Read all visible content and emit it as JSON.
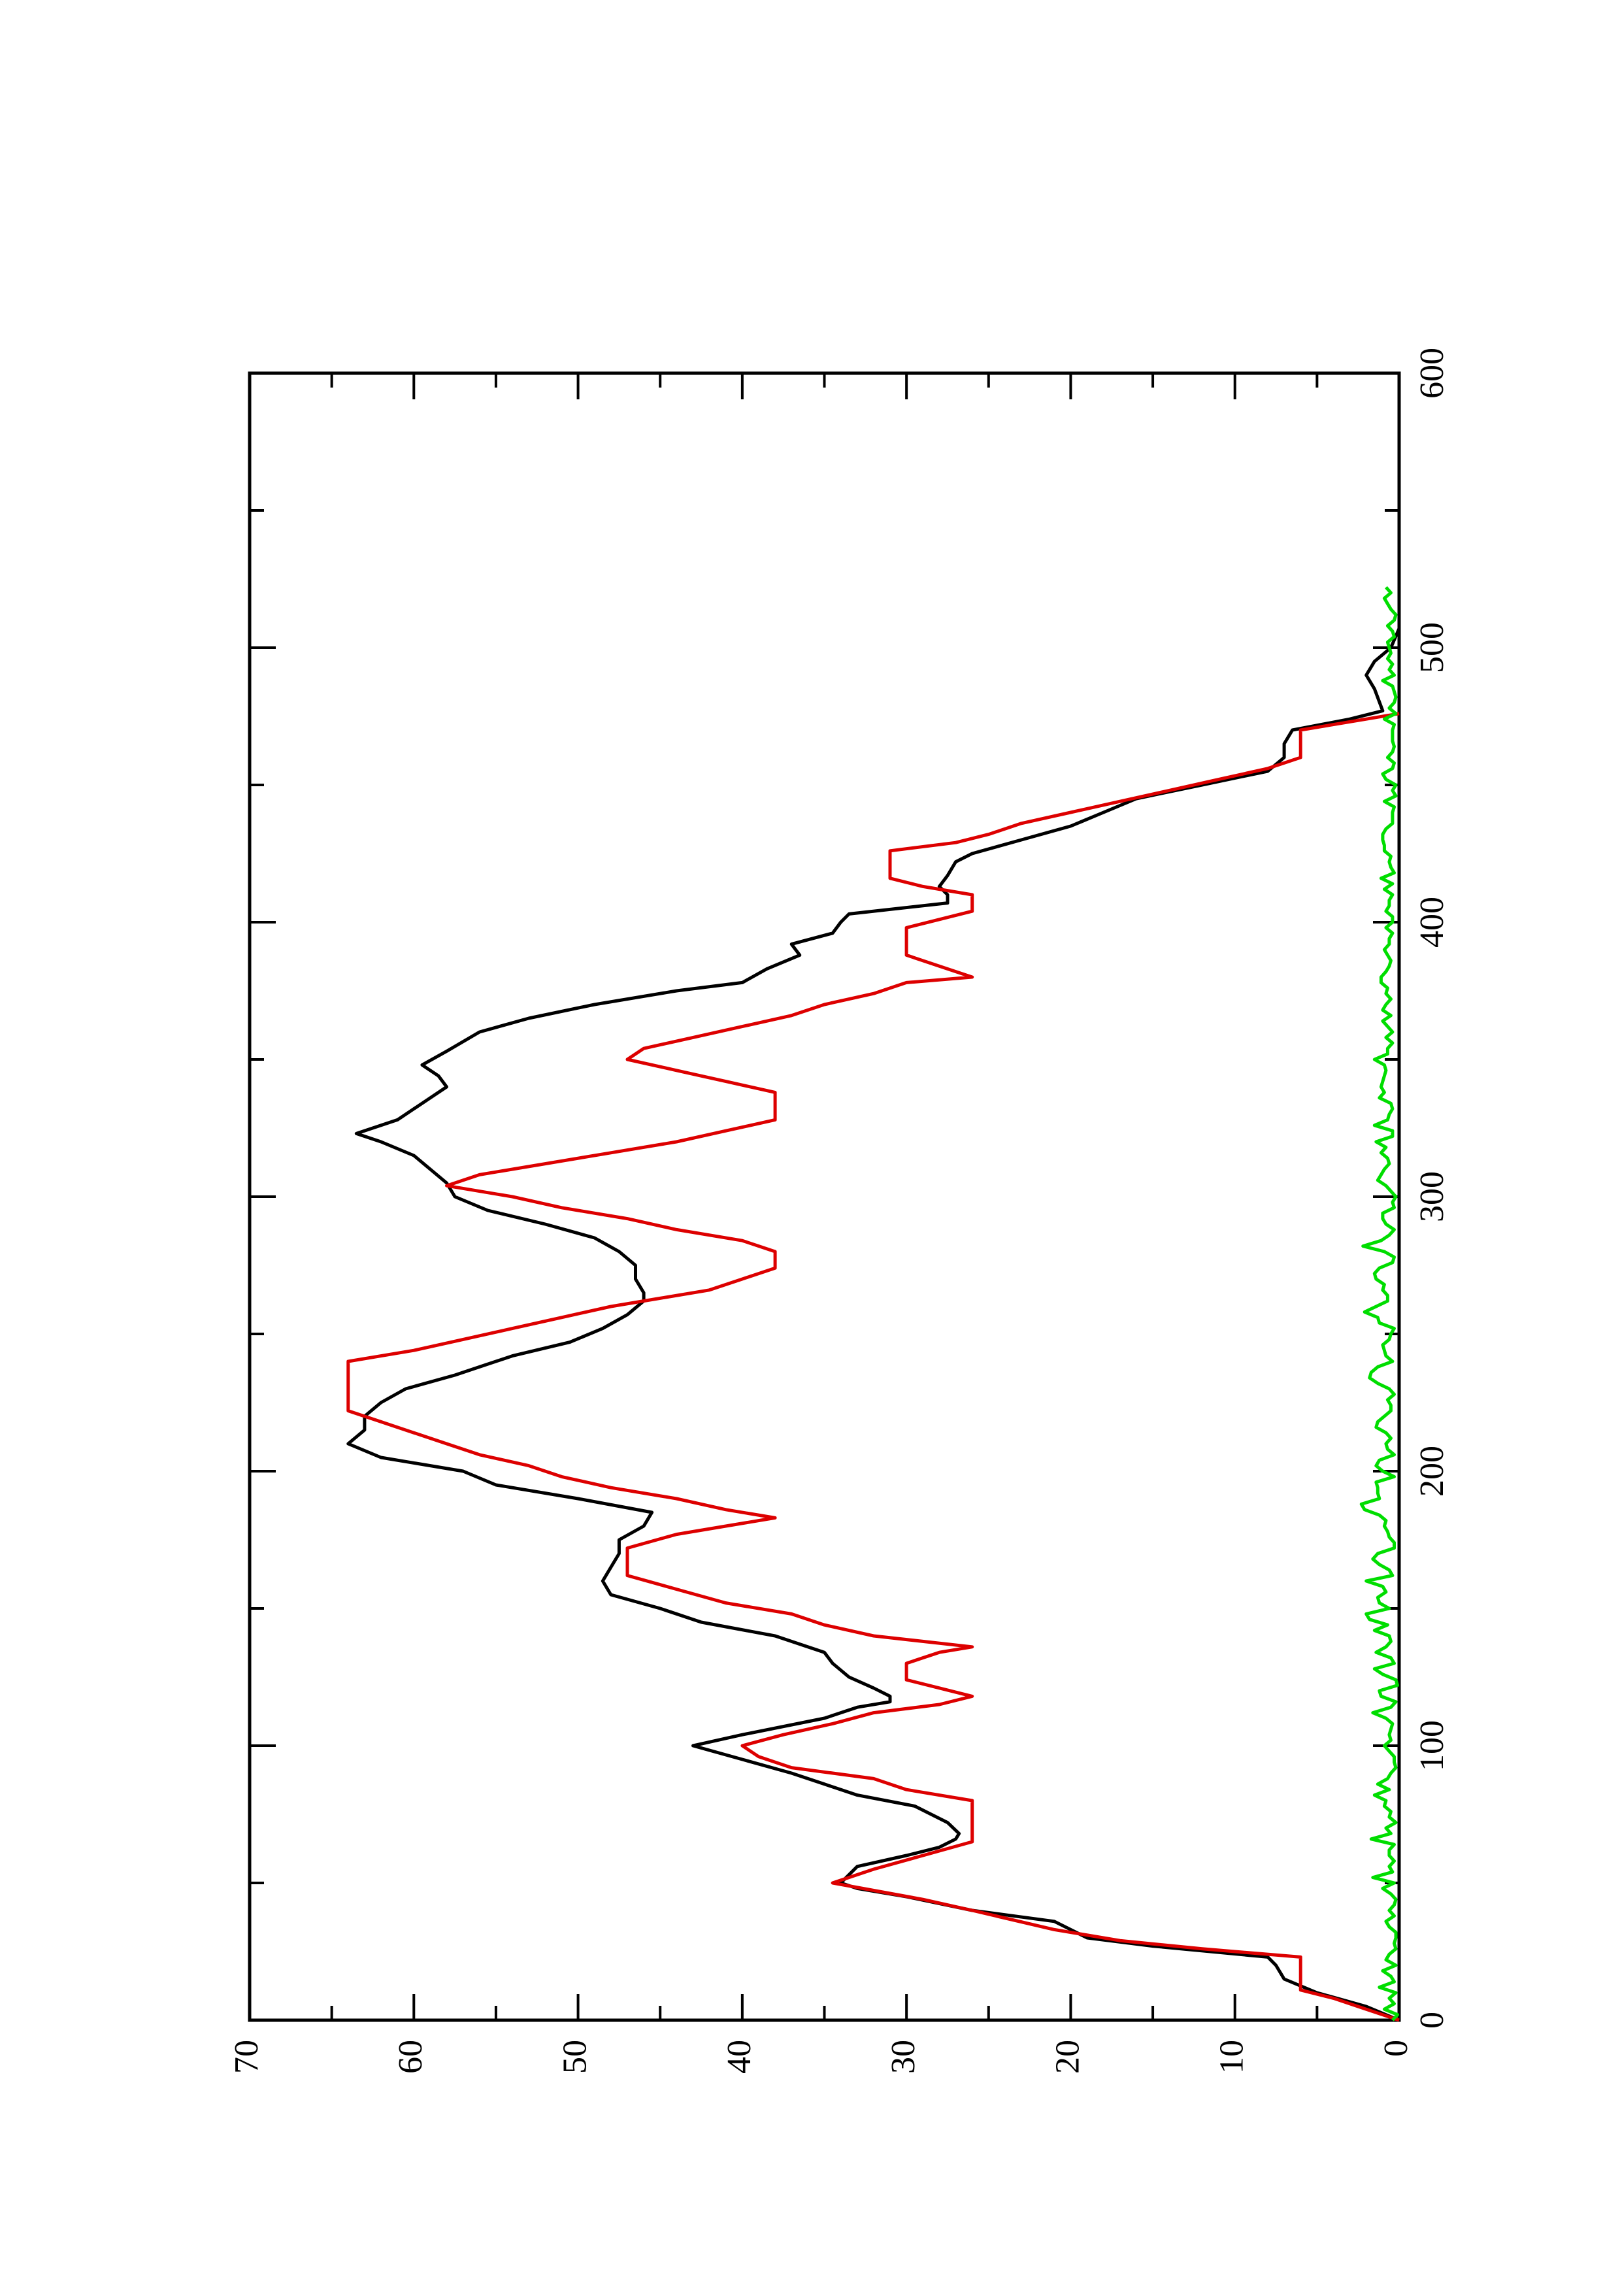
{
  "chart_data": {
    "type": "line",
    "orientation": "rotated-90-ccw",
    "title": "",
    "xlabel": "",
    "ylabel": "",
    "xlim": [
      0,
      600
    ],
    "ylim": [
      0,
      70
    ],
    "x_ticks": [
      "0",
      "100",
      "200",
      "300",
      "400",
      "500",
      "600"
    ],
    "y_ticks": [
      "0",
      "10",
      "20",
      "30",
      "40",
      "50",
      "60",
      "70"
    ],
    "grid": false,
    "legend": "none",
    "series": [
      {
        "color": "#000000",
        "style": "smoothed",
        "points": [
          [
            0,
            0
          ],
          [
            5,
            2
          ],
          [
            10,
            5
          ],
          [
            15,
            7
          ],
          [
            20,
            7.5
          ],
          [
            23,
            8
          ],
          [
            27,
            15
          ],
          [
            30,
            19
          ],
          [
            36,
            21
          ],
          [
            40,
            26
          ],
          [
            45,
            30
          ],
          [
            48,
            33
          ],
          [
            50,
            34
          ],
          [
            56,
            33
          ],
          [
            60,
            30
          ],
          [
            63,
            28
          ],
          [
            66,
            27
          ],
          [
            68,
            26.8
          ],
          [
            72,
            27.5
          ],
          [
            78,
            29.5
          ],
          [
            82,
            33
          ],
          [
            86,
            35
          ],
          [
            90,
            37
          ],
          [
            95,
            40
          ],
          [
            100,
            43
          ],
          [
            104,
            40
          ],
          [
            110,
            35
          ],
          [
            114,
            33
          ],
          [
            116,
            31
          ],
          [
            118,
            31
          ],
          [
            121,
            32
          ],
          [
            125,
            33.5
          ],
          [
            130,
            34.5
          ],
          [
            134,
            35
          ],
          [
            140,
            38
          ],
          [
            145,
            42.5
          ],
          [
            150,
            45
          ],
          [
            155,
            48
          ],
          [
            160,
            48.5
          ],
          [
            165,
            48
          ],
          [
            170,
            47.5
          ],
          [
            175,
            47.5
          ],
          [
            180,
            46
          ],
          [
            185,
            45.5
          ],
          [
            190,
            50
          ],
          [
            195,
            55
          ],
          [
            200,
            57
          ],
          [
            205,
            62
          ],
          [
            210,
            64
          ],
          [
            215,
            63
          ],
          [
            220,
            63
          ],
          [
            225,
            62
          ],
          [
            230,
            60.5
          ],
          [
            235,
            57.5
          ],
          [
            238,
            56
          ],
          [
            242,
            54
          ],
          [
            247,
            50.5
          ],
          [
            252,
            48.5
          ],
          [
            257,
            47
          ],
          [
            262,
            46
          ],
          [
            265,
            46
          ],
          [
            270,
            46.5
          ],
          [
            275,
            46.5
          ],
          [
            280,
            47.5
          ],
          [
            285,
            49
          ],
          [
            290,
            52
          ],
          [
            295,
            55.5
          ],
          [
            300,
            57.5
          ],
          [
            305,
            58
          ],
          [
            310,
            59
          ],
          [
            315,
            60
          ],
          [
            320,
            62
          ],
          [
            323,
            63.5
          ],
          [
            328,
            61
          ],
          [
            332,
            60
          ],
          [
            336,
            59
          ],
          [
            340,
            58
          ],
          [
            344,
            58.5
          ],
          [
            348,
            59.5
          ],
          [
            353,
            58
          ],
          [
            360,
            56
          ],
          [
            365,
            53
          ],
          [
            370,
            49
          ],
          [
            375,
            44
          ],
          [
            378,
            40
          ],
          [
            383,
            38.5
          ],
          [
            388,
            36.5
          ],
          [
            392,
            37
          ],
          [
            396,
            34.5
          ],
          [
            400,
            34
          ],
          [
            403,
            33.5
          ],
          [
            407,
            27.5
          ],
          [
            410,
            27.5
          ],
          [
            413,
            28
          ],
          [
            417,
            27.5
          ],
          [
            422,
            27
          ],
          [
            425,
            26
          ],
          [
            430,
            23
          ],
          [
            435,
            20
          ],
          [
            440,
            18
          ],
          [
            445,
            16
          ],
          [
            450,
            12
          ],
          [
            455,
            8
          ],
          [
            460,
            7
          ],
          [
            465,
            7
          ],
          [
            470,
            6.5
          ],
          [
            474,
            3
          ],
          [
            477,
            1
          ],
          [
            485,
            1.5
          ],
          [
            490,
            2
          ],
          [
            495,
            1.5
          ],
          [
            500,
            0.5
          ],
          [
            507,
            0
          ]
        ]
      },
      {
        "color": "#dd0000",
        "style": "step-trapezoid",
        "points": [
          [
            0,
            0
          ],
          [
            4,
            2
          ],
          [
            8,
            4
          ],
          [
            11,
            6
          ],
          [
            20,
            6
          ],
          [
            23,
            6
          ],
          [
            26,
            12
          ],
          [
            29,
            17
          ],
          [
            33,
            21
          ],
          [
            40,
            26
          ],
          [
            44,
            29
          ],
          [
            50,
            34.5
          ],
          [
            55,
            32
          ],
          [
            60,
            29
          ],
          [
            65,
            26
          ],
          [
            80,
            26
          ],
          [
            84,
            30
          ],
          [
            88,
            32
          ],
          [
            92,
            37
          ],
          [
            96,
            39
          ],
          [
            100,
            40
          ],
          [
            104,
            37.5
          ],
          [
            108,
            34.5
          ],
          [
            112,
            32
          ],
          [
            115,
            28
          ],
          [
            118,
            26
          ],
          [
            121,
            28
          ],
          [
            124,
            30
          ],
          [
            130,
            30
          ],
          [
            134,
            28
          ],
          [
            136,
            26
          ],
          [
            140,
            32
          ],
          [
            144,
            35
          ],
          [
            148,
            37
          ],
          [
            152,
            41
          ],
          [
            157,
            44
          ],
          [
            162,
            47
          ],
          [
            172,
            47
          ],
          [
            177,
            44
          ],
          [
            180,
            41
          ],
          [
            183,
            38
          ],
          [
            186,
            41
          ],
          [
            190,
            44
          ],
          [
            194,
            48
          ],
          [
            198,
            51
          ],
          [
            202,
            53
          ],
          [
            206,
            56
          ],
          [
            210,
            58
          ],
          [
            214,
            60
          ],
          [
            218,
            62
          ],
          [
            222,
            64
          ],
          [
            240,
            64
          ],
          [
            244,
            60
          ],
          [
            248,
            57
          ],
          [
            252,
            54
          ],
          [
            256,
            51
          ],
          [
            260,
            48
          ],
          [
            263,
            45
          ],
          [
            266,
            42
          ],
          [
            270,
            40
          ],
          [
            274,
            38
          ],
          [
            280,
            38
          ],
          [
            284,
            40
          ],
          [
            288,
            44
          ],
          [
            292,
            47
          ],
          [
            296,
            51
          ],
          [
            300,
            54
          ],
          [
            304,
            58
          ],
          [
            308,
            56
          ],
          [
            312,
            52
          ],
          [
            316,
            48
          ],
          [
            320,
            44
          ],
          [
            324,
            41
          ],
          [
            328,
            38
          ],
          [
            338,
            38
          ],
          [
            342,
            41
          ],
          [
            346,
            44
          ],
          [
            350,
            47
          ],
          [
            354,
            46
          ],
          [
            358,
            43
          ],
          [
            362,
            40
          ],
          [
            366,
            37
          ],
          [
            370,
            35
          ],
          [
            374,
            32
          ],
          [
            378,
            30
          ],
          [
            380,
            26
          ],
          [
            384,
            28
          ],
          [
            388,
            30
          ],
          [
            398,
            30
          ],
          [
            401,
            28
          ],
          [
            404,
            26
          ],
          [
            410,
            26
          ],
          [
            413,
            29
          ],
          [
            416,
            31
          ],
          [
            426,
            31
          ],
          [
            429,
            27
          ],
          [
            432,
            25
          ],
          [
            436,
            23
          ],
          [
            440,
            20
          ],
          [
            444,
            17
          ],
          [
            448,
            14
          ],
          [
            452,
            11
          ],
          [
            456,
            8
          ],
          [
            460,
            6
          ],
          [
            470,
            6
          ],
          [
            476,
            0
          ]
        ]
      },
      {
        "color": "#00dd00",
        "style": "noisy",
        "x_start": 0,
        "x_step": 2,
        "values": [
          0.4,
          0.1,
          0.9,
          0.3,
          0.6,
          0.2,
          1.2,
          0.3,
          0.5,
          1.0,
          0.2,
          0.8,
          0.6,
          0.2,
          0.3,
          0.2,
          0.2,
          0.6,
          0.8,
          0.3,
          0.6,
          0.3,
          0.2,
          0.5,
          1.0,
          0.3,
          1.6,
          0.4,
          0.6,
          0.3,
          0.6,
          0.6,
          0.3,
          1.7,
          0.5,
          0.8,
          0.2,
          0.6,
          0.5,
          0.9,
          0.8,
          1.5,
          0.6,
          1.3,
          0.7,
          0.5,
          0.2,
          0.3,
          0.3,
          0.6,
          0.9,
          0.5,
          0.6,
          0.5,
          0.4,
          0.8,
          1.6,
          0.5,
          0.2,
          1.1,
          1.2,
          0.1,
          0.2,
          1.0,
          1.5,
          0.3,
          0.5,
          1.4,
          0.8,
          0.5,
          0.6,
          1.5,
          0.7,
          1.8,
          2.0,
          0.6,
          1.2,
          1.3,
          0.8,
          1.0,
          2.0,
          0.4,
          0.6,
          1.2,
          1.6,
          1.3,
          0.3,
          0.3,
          0.6,
          0.7,
          0.9,
          0.8,
          1.2,
          2.1,
          2.3,
          1.2,
          1.3,
          1.3,
          1.4,
          0.3,
          1.0,
          1.4,
          1.2,
          0.3,
          0.7,
          0.8,
          0.5,
          0.8,
          1.4,
          1.3,
          0.9,
          0.5,
          0.5,
          0.7,
          0.3,
          0.6,
          1.3,
          1.8,
          1.7,
          1.3,
          0.4,
          0.8,
          0.9,
          1.0,
          0.6,
          0.5,
          0.3,
          1.2,
          1.3,
          2.1,
          1.4,
          0.7,
          0.7,
          1.0,
          0.9,
          1.4,
          1.5,
          1.2,
          0.4,
          0.3,
          0.9,
          2.2,
          1.1,
          0.6,
          0.3,
          0.8,
          1.0,
          1.0,
          0.3,
          0.4,
          0.2,
          0.5,
          0.8,
          1.3,
          1.1,
          0.9,
          0.6,
          0.7,
          1.1,
          0.8,
          1.4,
          0.4,
          0.4,
          1.5,
          0.7,
          0.6,
          0.4,
          0.5,
          1.2,
          0.9,
          1.1,
          1.0,
          0.9,
          0.8,
          0.9,
          1.5,
          0.7,
          0.7,
          0.4,
          0.8,
          0.4,
          0.7,
          1.0,
          0.5,
          1.0,
          0.8,
          0.5,
          0.8,
          0.7,
          1.1,
          1.1,
          0.8,
          0.6,
          0.5,
          0.7,
          0.9,
          0.6,
          0.6,
          0.4,
          0.8,
          0.4,
          0.4,
          0.8,
          0.6,
          0.6,
          0.4,
          0.9,
          0.4,
          1.1,
          0.3,
          0.5,
          0.6,
          0.5,
          0.9,
          0.9,
          1.0,
          1.0,
          0.8,
          0.4,
          0.4,
          0.4,
          0.3,
          0.9,
          0.2,
          0.4,
          0.2,
          0.8,
          1.0,
          0.4,
          0.3,
          0.7,
          0.4,
          0.3,
          0.4,
          0.4,
          0.4,
          0.3,
          0.9,
          0.2,
          0.6,
          0.3,
          0.2,
          0.3,
          0.4,
          1.0,
          0.3,
          0.6,
          0.4,
          0.7,
          0.5,
          0.6,
          0.7,
          0.3,
          0.4,
          0.7,
          0.3,
          0.2,
          0.5,
          0.7,
          0.9,
          0.5,
          0.8
        ]
      }
    ]
  }
}
